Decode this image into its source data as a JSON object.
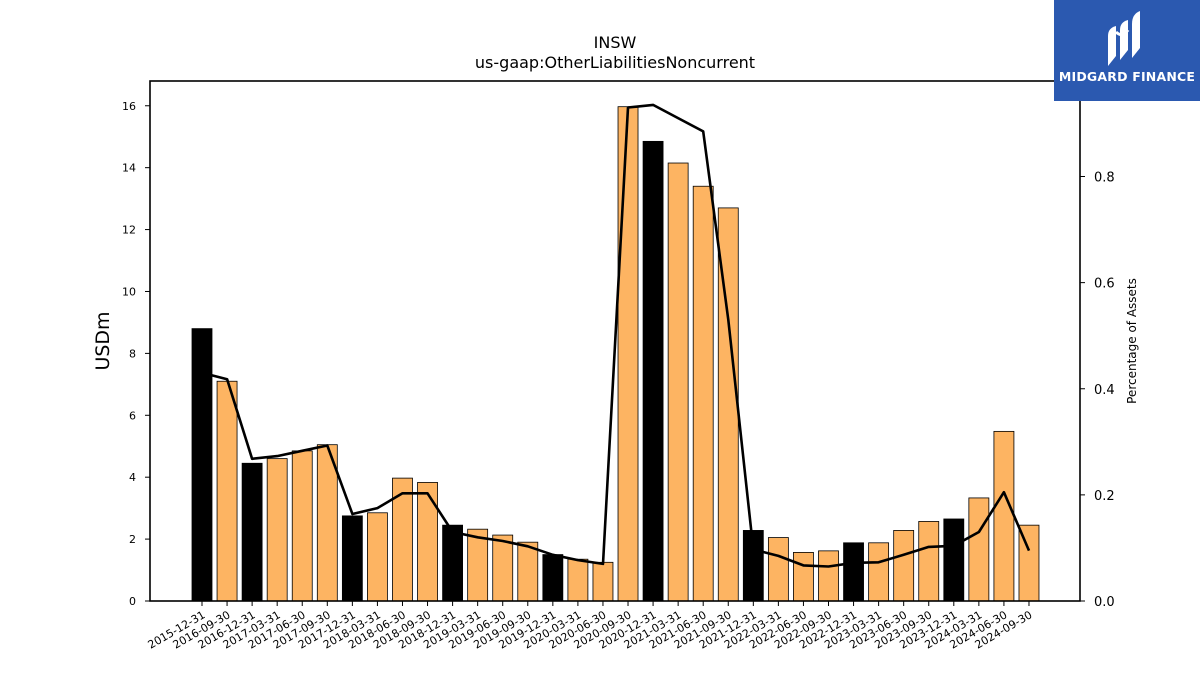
{
  "chart_data": {
    "type": "bar",
    "title": "INSW",
    "subtitle": "us-gaap:OtherLiabilitiesNoncurrent",
    "ylabel": "USDm",
    "y2label": "Percentage of Assets",
    "ylim": [
      0,
      16.8
    ],
    "y2lim": [
      0,
      0.98
    ],
    "yticks": [
      "0",
      "2",
      "4",
      "6",
      "8",
      "10",
      "12",
      "14",
      "16"
    ],
    "y2ticks": [
      "0.0",
      "0.2",
      "0.4",
      "0.6",
      "0.8"
    ],
    "categories": [
      "2015-12-31",
      "2016-09-30",
      "2016-12-31",
      "2017-03-31",
      "2017-06-30",
      "2017-09-30",
      "2017-12-31",
      "2018-03-31",
      "2018-06-30",
      "2018-09-30",
      "2018-12-31",
      "2019-03-31",
      "2019-06-30",
      "2019-09-30",
      "2019-12-31",
      "2020-03-31",
      "2020-06-30",
      "2020-09-30",
      "2020-12-31",
      "2021-03-31",
      "2021-06-30",
      "2021-09-30",
      "2021-12-31",
      "2022-03-31",
      "2022-06-30",
      "2022-09-30",
      "2022-12-31",
      "2023-03-31",
      "2023-06-30",
      "2023-09-30",
      "2023-12-31",
      "2024-03-31",
      "2024-06-30",
      "2024-09-30"
    ],
    "series": [
      {
        "type": "bar",
        "values": [
          8.8,
          7.1,
          4.45,
          4.6,
          4.85,
          5.05,
          2.75,
          2.85,
          3.97,
          3.83,
          2.45,
          2.32,
          2.13,
          1.9,
          1.5,
          1.35,
          1.25,
          15.97,
          14.85,
          14.15,
          13.4,
          12.7,
          2.28,
          2.05,
          1.57,
          1.62,
          1.88,
          1.88,
          2.28,
          2.57,
          2.65,
          3.33,
          5.48,
          2.45
        ],
        "colors": [
          "#000000",
          "#fdb462",
          "#000000",
          "#fdb462",
          "#fdb462",
          "#fdb462",
          "#000000",
          "#fdb462",
          "#fdb462",
          "#fdb462",
          "#000000",
          "#fdb462",
          "#fdb462",
          "#fdb462",
          "#000000",
          "#fdb462",
          "#fdb462",
          "#fdb462",
          "#000000",
          "#fdb462",
          "#fdb462",
          "#fdb462",
          "#000000",
          "#fdb462",
          "#fdb462",
          "#fdb462",
          "#000000",
          "#fdb462",
          "#fdb462",
          "#fdb462",
          "#000000",
          "#fdb462",
          "#fdb462",
          "#fdb462"
        ]
      },
      {
        "type": "line",
        "axis": "right",
        "values": [
          0.43,
          0.418,
          0.268,
          0.273,
          0.283,
          0.293,
          0.164,
          0.175,
          0.203,
          0.203,
          0.13,
          0.12,
          0.113,
          0.103,
          0.087,
          0.077,
          0.07,
          0.93,
          0.935,
          0.91,
          0.885,
          0.53,
          0.097,
          0.085,
          0.067,
          0.065,
          0.072,
          0.073,
          0.087,
          0.102,
          0.104,
          0.13,
          0.205,
          0.095
        ],
        "color": "#000000"
      }
    ],
    "colors": {
      "bar_highlight": "#000000",
      "bar_default": "#fdb462",
      "line": "#000000"
    }
  },
  "brand": {
    "name": "MIDGARD FINANCE",
    "background": "#2b59b0"
  }
}
